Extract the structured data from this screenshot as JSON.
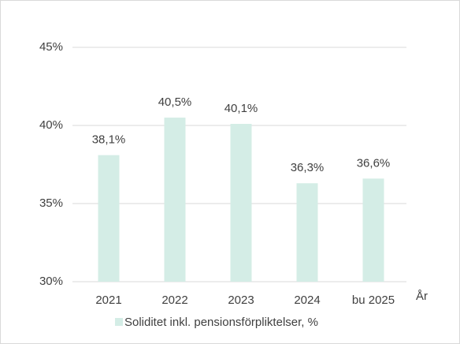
{
  "chart_data": {
    "type": "bar",
    "categories": [
      "2021",
      "2022",
      "2023",
      "2024",
      "bu 2025"
    ],
    "xlabel": "År",
    "series": [
      {
        "name": "Soliditet inkl. pensionsförpliktelser, %",
        "color": "#d4ede6",
        "values": [
          38.1,
          40.5,
          40.1,
          36.3,
          36.6
        ],
        "value_labels": [
          "38,1%",
          "40,5%",
          "40,1%",
          "36,3%",
          "36,6%"
        ]
      }
    ],
    "ylim": [
      30,
      45
    ],
    "yticks": [
      {
        "value": 30,
        "label": "30%"
      },
      {
        "value": 35,
        "label": "35%"
      },
      {
        "value": 40,
        "label": "40%"
      },
      {
        "value": 45,
        "label": "45%"
      }
    ],
    "grid": true,
    "legend": "bottom"
  }
}
